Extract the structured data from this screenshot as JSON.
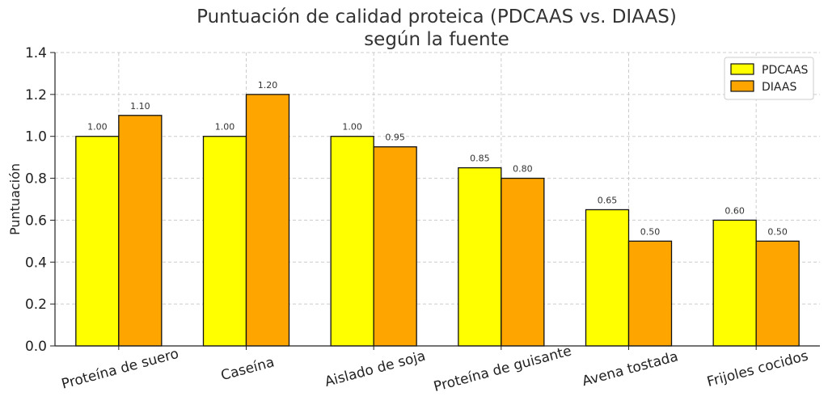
{
  "chart_data": {
    "type": "bar",
    "title": [
      "Puntuación de calidad proteica (PDCAAS vs. DIAAS)",
      "según la fuente"
    ],
    "xlabel": "",
    "ylabel": "Puntuación",
    "ylim": [
      0,
      1.4
    ],
    "yticks": [
      "0.0",
      "0.2",
      "0.4",
      "0.6",
      "0.8",
      "1.0",
      "1.2",
      "1.4"
    ],
    "grid": true,
    "legend_position": "top-right",
    "categories": [
      "Proteína de suero",
      "Caseína",
      "Aislado de soja",
      "Proteína de guisante",
      "Avena tostada",
      "Frijoles cocidos"
    ],
    "series": [
      {
        "name": "PDCAAS",
        "color": "#ffff00",
        "values": [
          1.0,
          1.0,
          1.0,
          0.85,
          0.65,
          0.6
        ],
        "labels": [
          "1.00",
          "1.00",
          "1.00",
          "0.85",
          "0.65",
          "0.60"
        ]
      },
      {
        "name": "DIAAS",
        "color": "#ffa500",
        "values": [
          1.1,
          1.2,
          0.95,
          0.8,
          0.5,
          0.5
        ],
        "labels": [
          "1.10",
          "1.20",
          "0.95",
          "0.80",
          "0.50",
          "0.50"
        ]
      }
    ]
  }
}
